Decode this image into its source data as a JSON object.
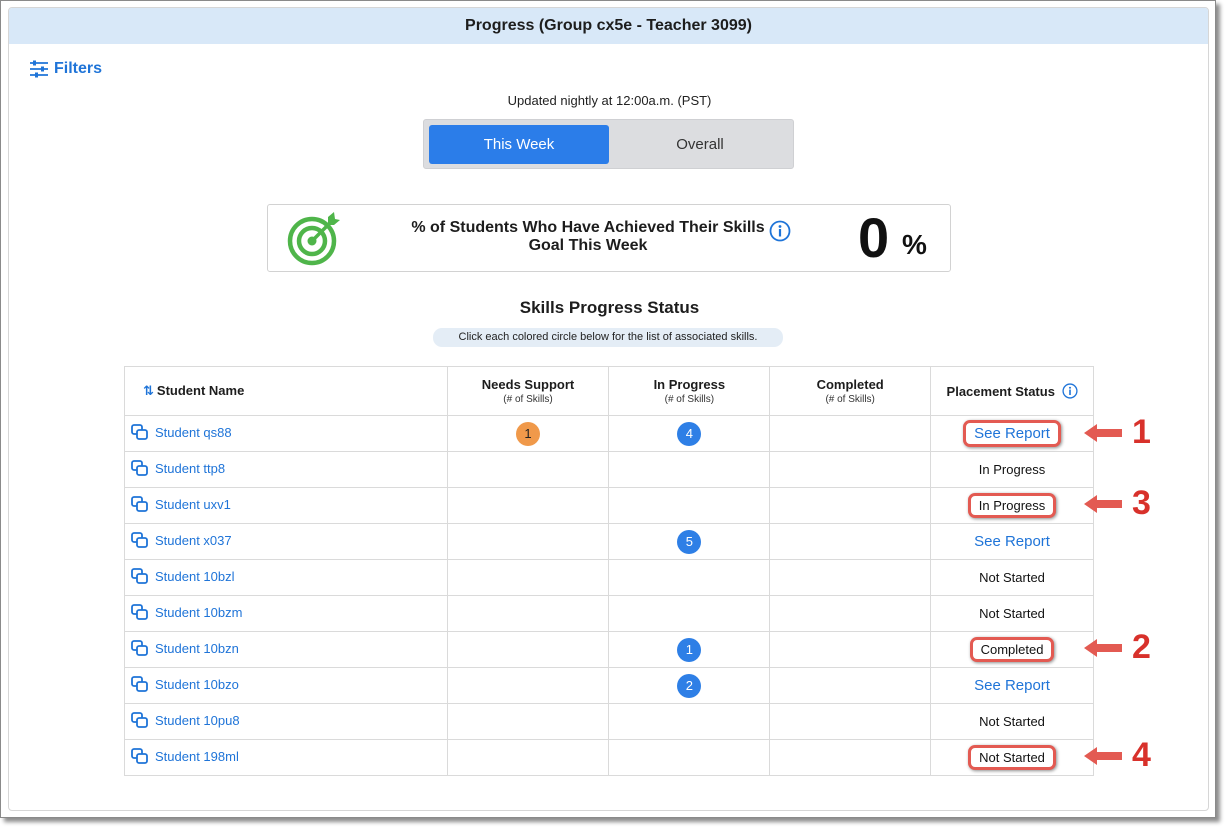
{
  "header": {
    "title": "Progress (Group cx5e - Teacher 3099)"
  },
  "filters": {
    "label": "Filters"
  },
  "updated_note": "Updated nightly at 12:00a.m. (PST)",
  "toggle": {
    "active": "This Week",
    "inactive": "Overall"
  },
  "goal_card": {
    "text": "% of Students Who Have Achieved Their Skills Goal This Week",
    "value": "0",
    "unit": "%"
  },
  "skills_section": {
    "title": "Skills Progress Status",
    "hint": "Click each colored circle below for the list of associated skills."
  },
  "table": {
    "headers": {
      "student_name": "Student Name",
      "needs_support": "Needs Support",
      "needs_support_sub": "(# of Skills)",
      "in_progress": "In Progress",
      "in_progress_sub": "(# of Skills)",
      "completed": "Completed",
      "completed_sub": "(# of Skills)",
      "placement": "Placement Status"
    },
    "rows": [
      {
        "name": "Student qs88",
        "needs_support": "1",
        "in_progress": "4",
        "completed": "",
        "placement": "See Report"
      },
      {
        "name": "Student ttp8",
        "needs_support": "",
        "in_progress": "",
        "completed": "",
        "placement": "In Progress"
      },
      {
        "name": "Student uxv1",
        "needs_support": "",
        "in_progress": "",
        "completed": "",
        "placement": "In Progress"
      },
      {
        "name": "Student x037",
        "needs_support": "",
        "in_progress": "5",
        "completed": "",
        "placement": "See Report"
      },
      {
        "name": "Student 10bzl",
        "needs_support": "",
        "in_progress": "",
        "completed": "",
        "placement": "Not Started"
      },
      {
        "name": "Student 10bzm",
        "needs_support": "",
        "in_progress": "",
        "completed": "",
        "placement": "Not Started"
      },
      {
        "name": "Student 10bzn",
        "needs_support": "",
        "in_progress": "1",
        "completed": "",
        "placement": "Completed"
      },
      {
        "name": "Student 10bzo",
        "needs_support": "",
        "in_progress": "2",
        "completed": "",
        "placement": "See Report"
      },
      {
        "name": "Student 10pu8",
        "needs_support": "",
        "in_progress": "",
        "completed": "",
        "placement": "Not Started"
      },
      {
        "name": "Student 198ml",
        "needs_support": "",
        "in_progress": "",
        "completed": "",
        "placement": "Not Started"
      }
    ]
  },
  "callouts": [
    "1",
    "3",
    "2",
    "4"
  ],
  "colors": {
    "accent_blue": "#2b7de9",
    "link_blue": "#1f74d8",
    "needs_support_orange": "#f0994a",
    "header_bg": "#d8e8f8",
    "callout_red": "#d8312b"
  }
}
